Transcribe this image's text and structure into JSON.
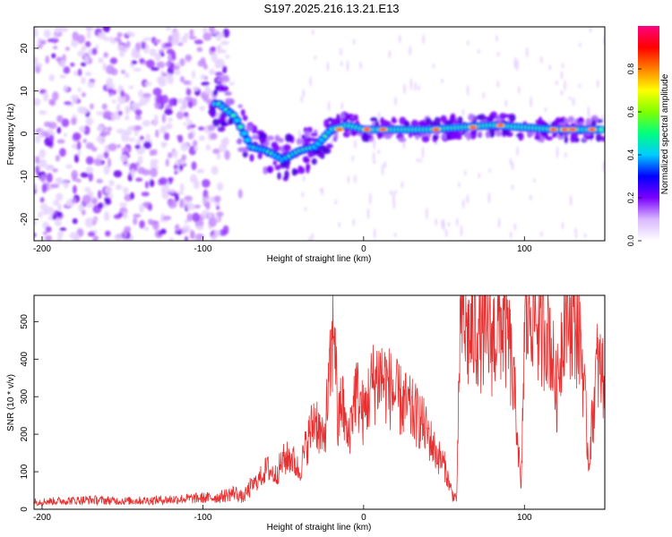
{
  "title": "S197.2025.216.13.21.E13",
  "chart_data": [
    {
      "type": "heatmap",
      "xlabel": "Height of straight line (km)",
      "ylabel": "Frequency (Hz)",
      "xlim": [
        -205,
        150
      ],
      "ylim": [
        -25,
        25
      ],
      "xticks": [
        -200,
        -100,
        0,
        100
      ],
      "yticks": [
        -20,
        -10,
        0,
        10,
        20
      ],
      "colorbar": {
        "label": "Normalized spectral amplitude",
        "range": [
          0,
          1
        ],
        "ticks": [
          "0.0",
          "0.2",
          "0.4",
          "0.6",
          "0.8"
        ],
        "colormap": [
          "#ffffff",
          "#d9b8ff",
          "#7a00ff",
          "#0000ff",
          "#00ccff",
          "#00ff80",
          "#80ff00",
          "#ffff00",
          "#ff8000",
          "#ff0000",
          "#ff007f"
        ]
      },
      "ridge": {
        "x": [
          -90,
          -80,
          -70,
          -60,
          -50,
          -40,
          -30,
          -20,
          -10,
          0,
          20,
          40,
          60,
          80,
          100,
          120,
          140,
          150
        ],
        "y": [
          7,
          4,
          -3,
          -4,
          -6,
          -4,
          -3,
          1,
          2,
          1,
          1,
          1,
          1.5,
          2,
          1.5,
          1,
          1,
          1
        ]
      }
    },
    {
      "type": "line",
      "xlabel": "Height of straight line (km)",
      "ylabel": "SNR (10 * v/v)",
      "xlim": [
        -205,
        150
      ],
      "ylim": [
        0,
        570
      ],
      "xticks": [
        -200,
        -100,
        0,
        100
      ],
      "yticks": [
        0,
        100,
        200,
        300,
        400,
        500
      ],
      "color": "#e83030",
      "x": [
        -205,
        -190,
        -170,
        -150,
        -130,
        -110,
        -90,
        -80,
        -75,
        -70,
        -65,
        -60,
        -55,
        -50,
        -45,
        -40,
        -35,
        -30,
        -25,
        -20,
        -18,
        -16,
        -14,
        -12,
        -10,
        -5,
        0,
        5,
        10,
        15,
        20,
        25,
        30,
        35,
        40,
        45,
        50,
        55,
        58,
        60,
        62,
        65,
        70,
        75,
        80,
        85,
        90,
        95,
        98,
        100,
        105,
        110,
        115,
        120,
        125,
        130,
        135,
        140,
        145,
        150
      ],
      "y": [
        20,
        22,
        25,
        22,
        24,
        28,
        32,
        45,
        30,
        60,
        80,
        110,
        90,
        130,
        140,
        100,
        180,
        250,
        170,
        400,
        520,
        200,
        300,
        250,
        180,
        320,
        250,
        330,
        360,
        330,
        300,
        280,
        260,
        240,
        200,
        150,
        120,
        40,
        30,
        500,
        510,
        460,
        480,
        470,
        450,
        500,
        460,
        250,
        40,
        480,
        560,
        470,
        500,
        300,
        550,
        520,
        460,
        120,
        380,
        350
      ]
    }
  ]
}
